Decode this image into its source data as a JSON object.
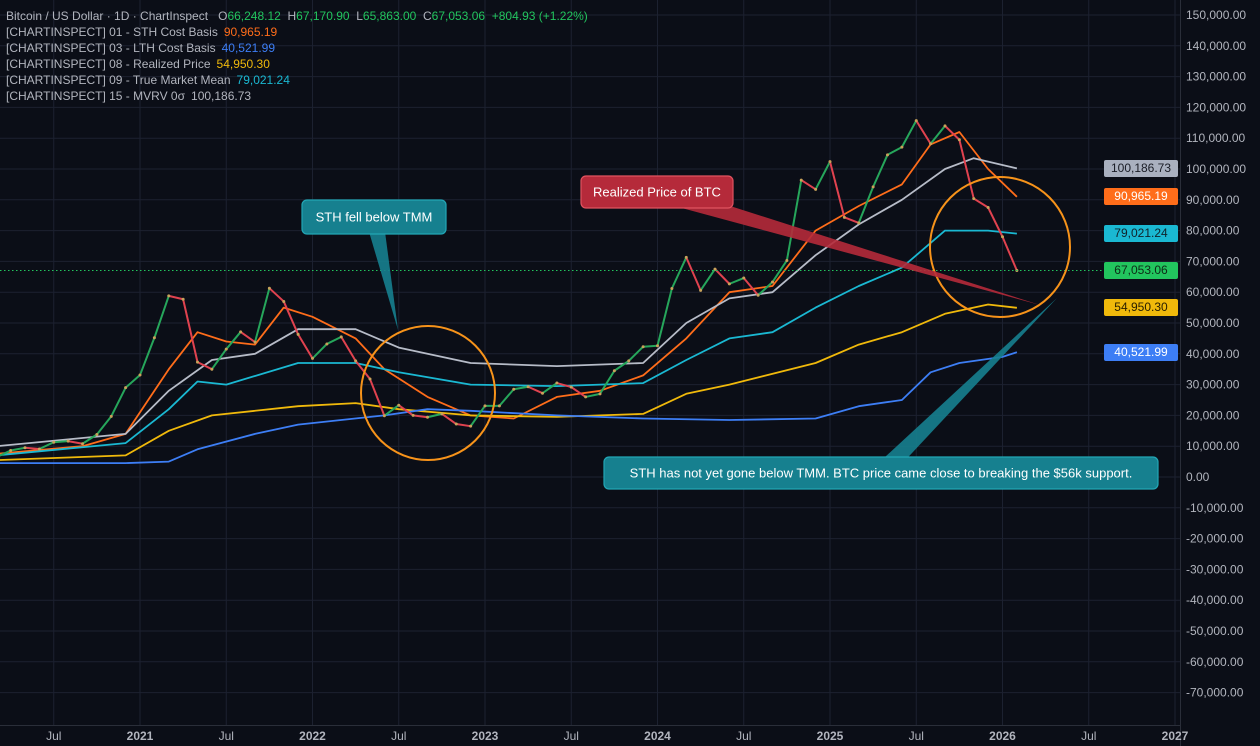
{
  "legend": {
    "symbol": "Bitcoin / US Dollar · 1D · ChartInspect",
    "open_label": "O",
    "open": "66,248.12",
    "high_label": "H",
    "high": "67,170.90",
    "low_label": "L",
    "low": "65,863.00",
    "close_label": "C",
    "close": "67,053.06",
    "change": "+804.93 (+1.22%)",
    "indicators": [
      {
        "name": "[CHARTINSPECT] 01 - STH Cost Basis",
        "value": "90,965.19",
        "color": "#ff6d1a"
      },
      {
        "name": "[CHARTINSPECT] 03 - LTH Cost Basis",
        "value": "40,521.99",
        "color": "#3d7ef5"
      },
      {
        "name": "[CHARTINSPECT] 08 - Realized Price",
        "value": "54,950.30",
        "color": "#f0b90b"
      },
      {
        "name": "[CHARTINSPECT] 09 - True Market Mean",
        "value": "79,021.24",
        "color": "#1ab8d2"
      },
      {
        "name": "[CHARTINSPECT] 15 - MVRV 0σ",
        "value": "100,186.73",
        "color": "#b7bcc8"
      }
    ]
  },
  "price_tags": [
    {
      "value": "100,186.73",
      "numeric": 100186.73,
      "bg": "#a9b0bf",
      "fg": "#1a1d26"
    },
    {
      "value": "90,965.19",
      "numeric": 90965.19,
      "bg": "#ff6d1a",
      "fg": "#ffffff"
    },
    {
      "value": "79,021.24",
      "numeric": 79021.24,
      "bg": "#1ab8d2",
      "fg": "#10222a"
    },
    {
      "value": "67,053.06",
      "numeric": 67053.06,
      "bg": "#22c55e",
      "fg": "#0e2a17"
    },
    {
      "value": "54,950.30",
      "numeric": 54950.3,
      "bg": "#f0b90b",
      "fg": "#2a2000"
    },
    {
      "value": "40,521.99",
      "numeric": 40521.99,
      "bg": "#3d7ef5",
      "fg": "#ffffff"
    }
  ],
  "annotations": [
    {
      "text": "STH fell below TMM",
      "color": "#16808f"
    },
    {
      "text": "Realized Price of BTC",
      "color": "#b52a3a"
    },
    {
      "text": "STH has not yet gone below TMM. BTC price came close to breaking the $56k support.",
      "color": "#16808f"
    }
  ],
  "chart_data": {
    "type": "line",
    "ylim": [
      -75000,
      155000
    ],
    "y_ticks": [
      "150,000.00",
      "140,000.00",
      "130,000.00",
      "120,000.00",
      "110,000.00",
      "100,000.00",
      "90,000.00",
      "80,000.00",
      "70,000.00",
      "60,000.00",
      "50,000.00",
      "40,000.00",
      "30,000.00",
      "20,000.00",
      "10,000.00",
      "0.00",
      "-10,000.00",
      "-20,000.00",
      "-30,000.00",
      "-40,000.00",
      "-50,000.00",
      "-60,000.00",
      "-70,000.00"
    ],
    "x_ticks": [
      {
        "label": "Jul",
        "date": "2020-07"
      },
      {
        "label": "2021",
        "date": "2021-01"
      },
      {
        "label": "Jul",
        "date": "2021-07"
      },
      {
        "label": "2022",
        "date": "2022-01"
      },
      {
        "label": "Jul",
        "date": "2022-07"
      },
      {
        "label": "2023",
        "date": "2023-01"
      },
      {
        "label": "Jul",
        "date": "2023-07"
      },
      {
        "label": "2024",
        "date": "2024-01"
      },
      {
        "label": "Jul",
        "date": "2024-07"
      },
      {
        "label": "2025",
        "date": "2025-01"
      },
      {
        "label": "Jul",
        "date": "2025-07"
      },
      {
        "label": "2026",
        "date": "2026-01"
      },
      {
        "label": "Jul",
        "date": "2026-07"
      },
      {
        "label": "2027",
        "date": "2027-01"
      }
    ],
    "grid": true,
    "last_price_line": 67053.06,
    "price": {
      "name": "Bitcoin / US Dollar",
      "dates": [
        "2020-03",
        "2020-04",
        "2020-05",
        "2020-06",
        "2020-07",
        "2020-08",
        "2020-09",
        "2020-10",
        "2020-11",
        "2020-12",
        "2021-01",
        "2021-02",
        "2021-03",
        "2021-04",
        "2021-05",
        "2021-06",
        "2021-07",
        "2021-08",
        "2021-09",
        "2021-10",
        "2021-11",
        "2021-12",
        "2022-01",
        "2022-02",
        "2022-03",
        "2022-04",
        "2022-05",
        "2022-06",
        "2022-07",
        "2022-08",
        "2022-09",
        "2022-10",
        "2022-11",
        "2022-12",
        "2023-01",
        "2023-02",
        "2023-03",
        "2023-04",
        "2023-05",
        "2023-06",
        "2023-07",
        "2023-08",
        "2023-09",
        "2023-10",
        "2023-11",
        "2023-12",
        "2024-01",
        "2024-02",
        "2024-03",
        "2024-04",
        "2024-05",
        "2024-06",
        "2024-07",
        "2024-08",
        "2024-09",
        "2024-10",
        "2024-11",
        "2024-12",
        "2025-01",
        "2025-02",
        "2025-03",
        "2025-04",
        "2025-05",
        "2025-06",
        "2025-07",
        "2025-08",
        "2025-09",
        "2025-10",
        "2025-11",
        "2025-12",
        "2026-01",
        "2026-02"
      ],
      "values": [
        6400,
        8600,
        9500,
        9100,
        11300,
        11650,
        10800,
        13800,
        19700,
        29000,
        33100,
        45200,
        58800,
        57700,
        37300,
        35000,
        41500,
        47100,
        43800,
        61300,
        57000,
        46300,
        38500,
        43200,
        45500,
        37700,
        31800,
        19900,
        23300,
        20000,
        19400,
        20500,
        17200,
        16500,
        23100,
        23100,
        28500,
        29300,
        27200,
        30500,
        29200,
        26000,
        27000,
        34500,
        37700,
        42300,
        42600,
        61200,
        71300,
        60600,
        67500,
        62700,
        64600,
        59000,
        63300,
        70300,
        96400,
        93400,
        102400,
        84300,
        82500,
        94200,
        104600,
        107100,
        115700,
        108200,
        114000,
        109500,
        90400,
        87500,
        78000,
        67053
      ]
    },
    "series": [
      {
        "name": "[CHARTINSPECT] 01 - STH Cost Basis",
        "color": "#ff6d1a",
        "dates": [
          "2020-03",
          "2020-09",
          "2020-12",
          "2021-03",
          "2021-05",
          "2021-07",
          "2021-09",
          "2021-11",
          "2022-01",
          "2022-04",
          "2022-06",
          "2022-09",
          "2022-12",
          "2023-03",
          "2023-06",
          "2023-09",
          "2023-12",
          "2024-03",
          "2024-06",
          "2024-09",
          "2024-12",
          "2025-03",
          "2025-06",
          "2025-08",
          "2025-10",
          "2025-12",
          "2026-02"
        ],
        "values": [
          7500,
          10000,
          14000,
          35000,
          47000,
          44000,
          43000,
          55000,
          52000,
          45000,
          35000,
          26000,
          20000,
          19000,
          26000,
          28000,
          33000,
          45000,
          60000,
          62000,
          80000,
          88000,
          95000,
          108000,
          112000,
          100000,
          90965.19
        ]
      },
      {
        "name": "[CHARTINSPECT] 15 - MVRV 0σ",
        "color": "#b7bcc8",
        "dates": [
          "2020-03",
          "2020-12",
          "2021-03",
          "2021-06",
          "2021-09",
          "2021-12",
          "2022-04",
          "2022-07",
          "2022-12",
          "2023-06",
          "2023-12",
          "2024-03",
          "2024-06",
          "2024-09",
          "2024-12",
          "2025-03",
          "2025-06",
          "2025-09",
          "2025-11",
          "2026-02"
        ],
        "values": [
          10000,
          14000,
          28000,
          38000,
          40000,
          48000,
          48000,
          42000,
          37000,
          36000,
          37000,
          50000,
          58000,
          60000,
          72000,
          82000,
          90000,
          100000,
          103500,
          100186.73
        ]
      },
      {
        "name": "[CHARTINSPECT] 09 - True Market Mean",
        "color": "#1ab8d2",
        "dates": [
          "2020-03",
          "2020-12",
          "2021-03",
          "2021-05",
          "2021-07",
          "2021-12",
          "2022-04",
          "2022-07",
          "2022-12",
          "2023-06",
          "2023-12",
          "2024-03",
          "2024-06",
          "2024-09",
          "2024-12",
          "2025-03",
          "2025-06",
          "2025-09",
          "2025-12",
          "2026-02"
        ],
        "values": [
          7000,
          11000,
          22000,
          31000,
          30000,
          37000,
          37000,
          34000,
          30000,
          29500,
          30500,
          38000,
          45000,
          47000,
          55000,
          62000,
          68000,
          80000,
          80000,
          79021.24
        ]
      },
      {
        "name": "[CHARTINSPECT] 08 - Realized Price",
        "color": "#f0b90b",
        "dates": [
          "2020-03",
          "2020-12",
          "2021-03",
          "2021-06",
          "2021-12",
          "2022-04",
          "2022-07",
          "2022-12",
          "2023-06",
          "2023-12",
          "2024-03",
          "2024-06",
          "2024-12",
          "2025-03",
          "2025-06",
          "2025-09",
          "2025-12",
          "2026-02"
        ],
        "values": [
          5500,
          7000,
          15000,
          20000,
          23000,
          24000,
          22000,
          20000,
          19500,
          20500,
          27000,
          30000,
          37000,
          43000,
          47000,
          53000,
          56000,
          54950.3
        ]
      },
      {
        "name": "[CHARTINSPECT] 03 - LTH Cost Basis",
        "color": "#3d7ef5",
        "dates": [
          "2020-03",
          "2020-12",
          "2021-03",
          "2021-05",
          "2021-09",
          "2021-12",
          "2022-06",
          "2022-09",
          "2022-12",
          "2023-06",
          "2023-12",
          "2024-06",
          "2024-12",
          "2025-03",
          "2025-06",
          "2025-08",
          "2025-10",
          "2026-01",
          "2026-02"
        ],
        "values": [
          4500,
          4500,
          5000,
          9000,
          14000,
          17000,
          20000,
          22000,
          21500,
          20000,
          19000,
          18500,
          19000,
          23000,
          25000,
          34000,
          37000,
          39000,
          40521.99
        ]
      }
    ]
  }
}
